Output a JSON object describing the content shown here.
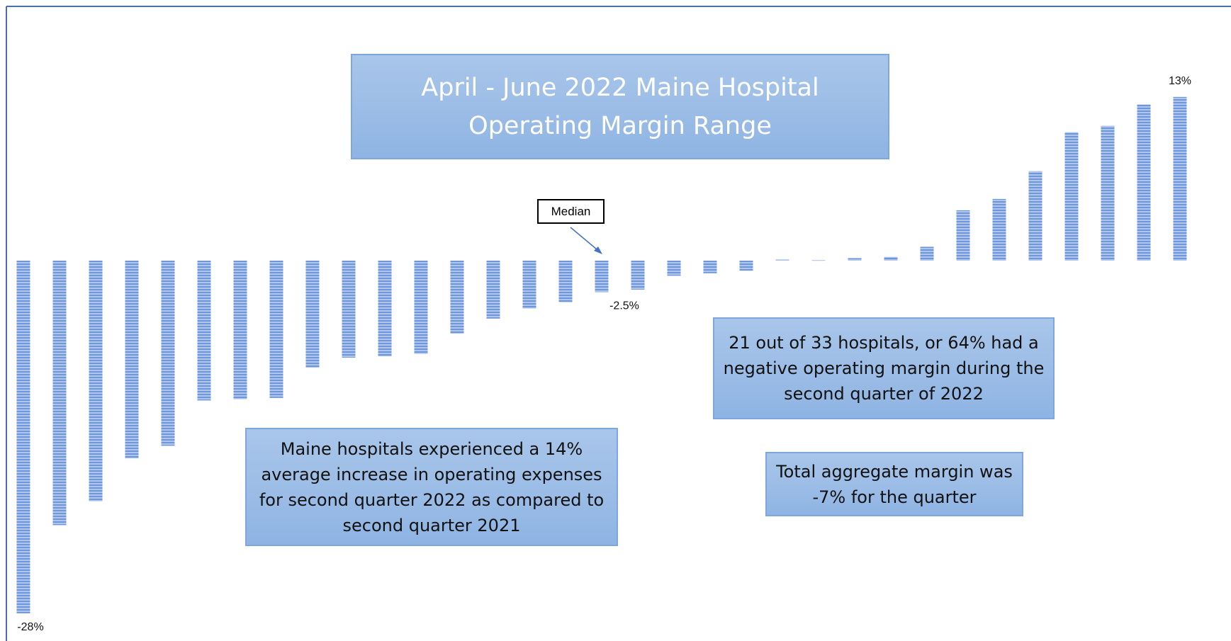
{
  "chart_data": {
    "type": "bar",
    "title": "April - June 2022 Maine Hospital Operating Margin Range",
    "values": [
      -28,
      -21,
      -19.1,
      -15.7,
      -14.7,
      -11.1,
      -11,
      -10.9,
      -8.5,
      -7.7,
      -7.6,
      -7.4,
      -5.8,
      -4.6,
      -3.8,
      -3.3,
      -2.5,
      -2.3,
      -1.2,
      -1,
      -0.8,
      0.1,
      0.05,
      0.2,
      0.3,
      1.1,
      4,
      4.9,
      7.1,
      10.2,
      10.7,
      12.4,
      13
    ],
    "value_labels": [
      "-28%",
      null,
      null,
      null,
      null,
      null,
      null,
      null,
      null,
      null,
      null,
      null,
      null,
      null,
      null,
      null,
      "-2.5%",
      null,
      null,
      null,
      null,
      null,
      null,
      null,
      null,
      null,
      null,
      null,
      null,
      null,
      null,
      null,
      "13%"
    ],
    "color": "#6f97d8",
    "ylim": [
      -28,
      13
    ],
    "median_label": "Median",
    "median_index": 16,
    "annotations": [
      "21 out of 33 hospitals, or 64% had a negative operating margin during the second quarter of 2022",
      "Maine hospitals experienced a 14% average increase in operating expenses for second quarter 2022 as compared to second quarter 2021",
      "Total aggregate margin was -7% for the quarter"
    ]
  }
}
